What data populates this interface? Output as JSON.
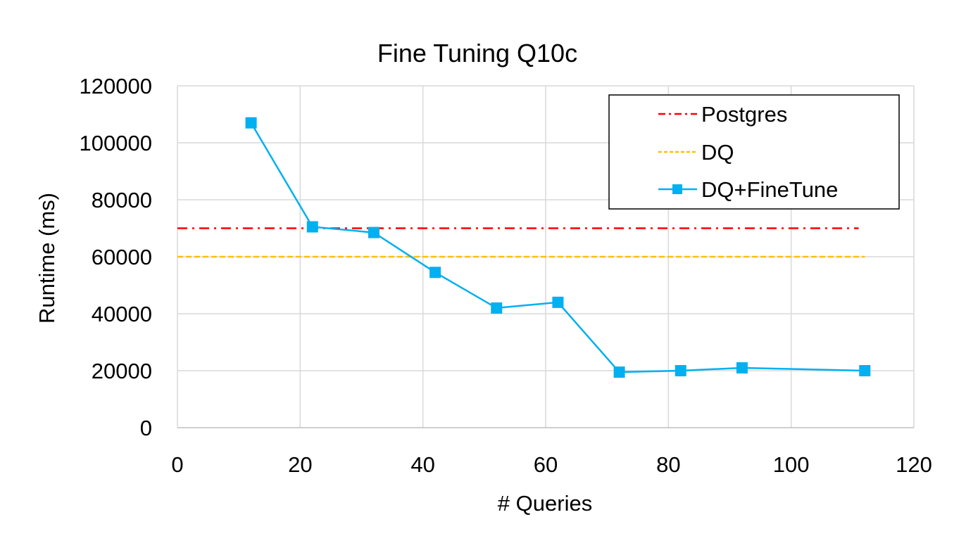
{
  "chart_data": {
    "type": "line",
    "title": "Fine Tuning Q10c",
    "xlabel": "# Queries",
    "ylabel": "Runtime (ms)",
    "xlim": [
      0,
      120
    ],
    "ylim": [
      0,
      120000
    ],
    "x_ticks": [
      0,
      20,
      40,
      60,
      80,
      100,
      120
    ],
    "y_ticks": [
      0,
      20000,
      40000,
      60000,
      80000,
      100000,
      120000
    ],
    "grid": true,
    "legend_position": "top-right",
    "series": [
      {
        "name": "Postgres",
        "style": "dash-dot",
        "color": "#FF0000",
        "x": [
          0,
          111
        ],
        "y": [
          70000,
          70000
        ]
      },
      {
        "name": "DQ",
        "style": "dashed",
        "color": "#FFC000",
        "x": [
          0,
          112
        ],
        "y": [
          60000,
          60000
        ]
      },
      {
        "name": "DQ+FineTune",
        "style": "solid-square-markers",
        "color": "#00B0F0",
        "x": [
          12,
          22,
          32,
          42,
          52,
          62,
          72,
          82,
          92,
          112
        ],
        "y": [
          107000,
          70500,
          68500,
          54500,
          42000,
          44000,
          19500,
          20000,
          21000,
          20000
        ]
      }
    ]
  }
}
